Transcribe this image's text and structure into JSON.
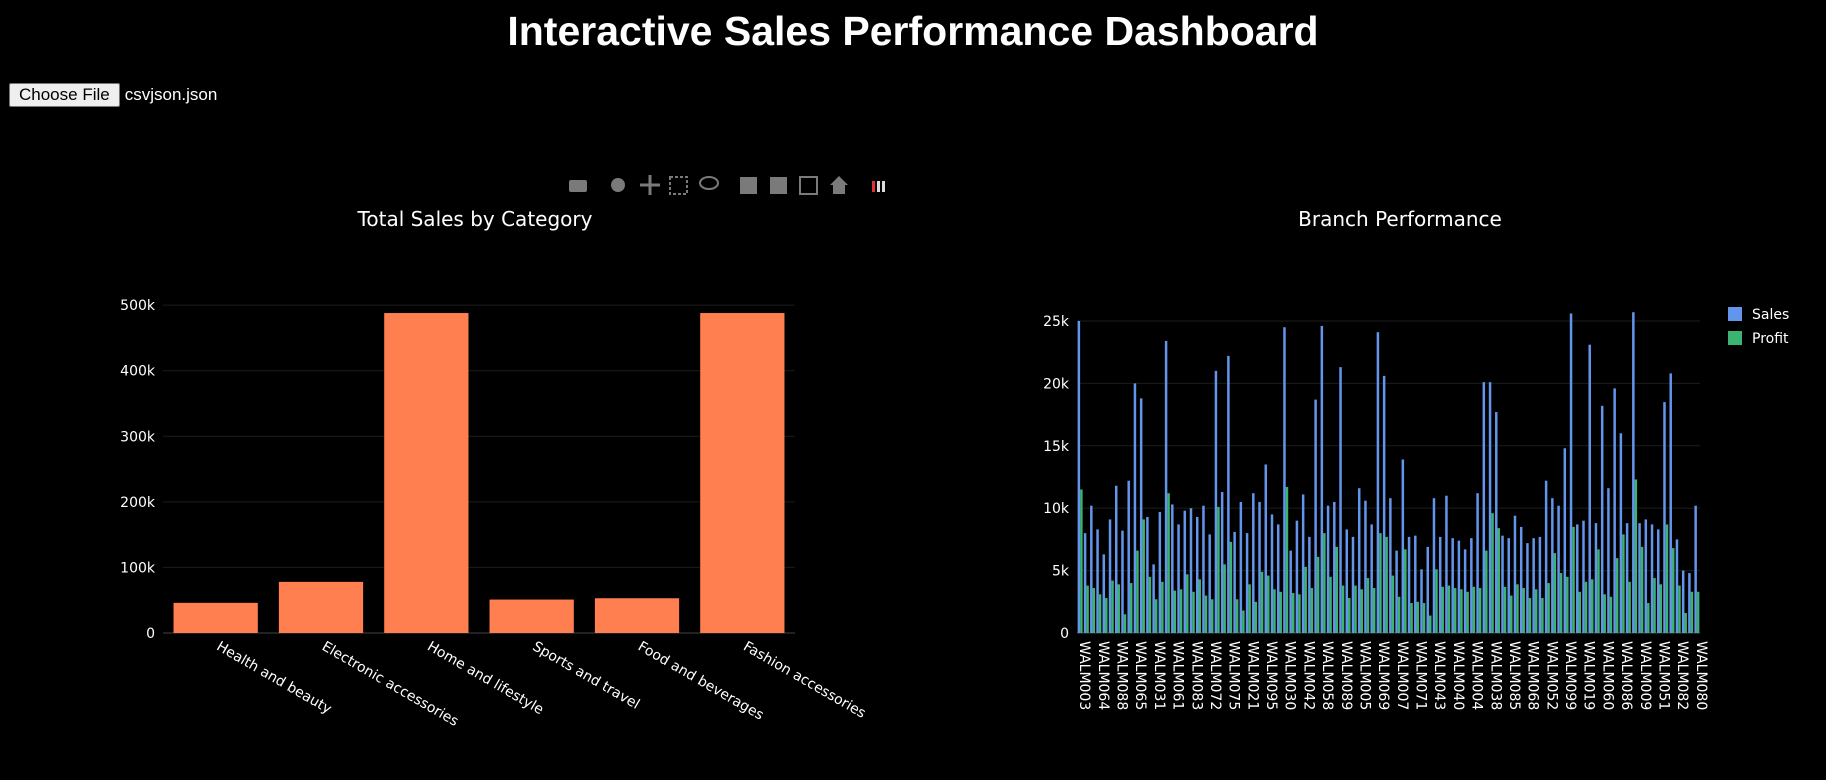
{
  "title": "Interactive Sales Performance Dashboard",
  "file_input": {
    "button": "Choose File",
    "filename": "csvjson.json"
  },
  "chart_data": [
    {
      "type": "bar",
      "title": "Total Sales by Category",
      "categories": [
        "Health and beauty",
        "Electronic accessories",
        "Home and lifestyle",
        "Sports and travel",
        "Food and beverages",
        "Fashion accessories"
      ],
      "values": [
        46000,
        78000,
        488000,
        51000,
        53000,
        488000
      ],
      "color": "#ff7f50",
      "ylim": [
        0,
        514000
      ],
      "yticks": [
        0,
        {
          "value": 100000,
          "label": "100k"
        },
        {
          "value": 200000,
          "label": "200k"
        },
        {
          "value": 300000,
          "label": "300k"
        },
        {
          "value": 400000,
          "label": "400k"
        },
        {
          "value": 500000,
          "label": "500k"
        }
      ],
      "grid": true
    },
    {
      "type": "grouped_bar",
      "title": "Branch Performance",
      "categories": [
        "WALM003",
        null,
        null,
        "WALM064",
        null,
        null,
        "WALM088",
        null,
        null,
        "WALM065",
        null,
        null,
        "WALM031",
        null,
        null,
        "WALM061",
        null,
        null,
        "WALM083",
        null,
        null,
        "WALM072",
        null,
        null,
        "WALM075",
        null,
        null,
        "WALM021",
        null,
        null,
        "WALM095",
        null,
        null,
        "WALM030",
        null,
        null,
        "WALM042",
        null,
        null,
        "WALM058",
        null,
        null,
        "WALM089",
        null,
        null,
        "WALM005",
        null,
        null,
        "WALM069",
        null,
        null,
        "WALM007",
        null,
        null,
        "WALM071",
        null,
        null,
        "WALM043",
        null,
        null,
        "WALM040",
        null,
        null,
        "WALM004",
        null,
        null,
        "WALM038",
        null,
        null,
        "WALM085",
        null,
        null,
        "WALM068",
        null,
        null,
        "WALM052",
        null,
        null,
        "WALM099",
        null,
        null,
        "WALM019",
        null,
        null,
        "WALM060",
        null,
        null,
        "WALM086",
        null,
        null,
        "WALM009",
        null,
        null,
        "WALM051",
        null,
        null,
        "WALM082",
        null,
        null,
        "WALM080"
      ],
      "series": [
        {
          "name": "Sales",
          "color": "#6495ed",
          "values": [
            25000,
            8000,
            10200,
            8300,
            6300,
            9100,
            11800,
            8200,
            12200,
            20000,
            18800,
            9300,
            5500,
            9700,
            23400,
            10300,
            8700,
            9800,
            10000,
            9300,
            10200,
            7900,
            21000,
            11300,
            22200,
            8100,
            10500,
            8000,
            11200,
            10500,
            13500,
            9500,
            8700,
            24500,
            6600,
            9000,
            11100,
            7700,
            18700,
            24600,
            10200,
            10500,
            21300,
            8300,
            7700,
            11600,
            10600,
            8700,
            24100,
            20600,
            10800,
            6600,
            13900,
            7700,
            7800,
            5100,
            6900,
            10800,
            7700,
            11000,
            7600,
            7400,
            6700,
            7600,
            11200,
            20100,
            20100,
            17700,
            7800,
            7600,
            9400,
            8500,
            7200,
            7600,
            7700,
            12200,
            10800,
            10200,
            14800,
            25600,
            8700,
            9000,
            23100,
            8800,
            18200,
            11600,
            19600,
            16000,
            8800,
            25700,
            8800,
            9100,
            8700,
            8300,
            18500,
            20800,
            7500,
            5000,
            4800,
            10200
          ]
        },
        {
          "name": "Profit",
          "color": "#3cb371",
          "values": [
            11500,
            3800,
            3600,
            3100,
            2800,
            4200,
            3900,
            1500,
            4000,
            6600,
            9100,
            4500,
            2700,
            4100,
            11200,
            3400,
            3500,
            4700,
            3300,
            4300,
            3000,
            2700,
            10100,
            5500,
            7300,
            2700,
            1800,
            3900,
            2500,
            4900,
            4600,
            3500,
            3300,
            11700,
            3200,
            3100,
            5300,
            3600,
            6100,
            8000,
            4500,
            6900,
            3800,
            2800,
            3800,
            3500,
            4400,
            3600,
            8000,
            7700,
            4600,
            2900,
            6700,
            2400,
            2500,
            2400,
            1400,
            5100,
            3700,
            3800,
            3600,
            3500,
            3300,
            3700,
            3600,
            6600,
            9600,
            8400,
            3700,
            3000,
            3900,
            3600,
            2800,
            3500,
            2800,
            4000,
            6400,
            4800,
            4500,
            8500,
            3300,
            4100,
            4300,
            6700,
            3100,
            2900,
            6000,
            7900,
            4100,
            12300,
            6900,
            2400,
            4400,
            3900,
            8700,
            6800,
            3800,
            1600,
            3300,
            3300
          ]
        }
      ],
      "ylim": [
        0,
        27000
      ],
      "yticks": [
        0,
        {
          "value": 5000,
          "label": "5k"
        },
        {
          "value": 10000,
          "label": "10k"
        },
        {
          "value": 15000,
          "label": "15k"
        },
        {
          "value": 20000,
          "label": "20k"
        },
        {
          "value": 25000,
          "label": "25k"
        }
      ],
      "grid": true,
      "legend": "top-right"
    }
  ]
}
